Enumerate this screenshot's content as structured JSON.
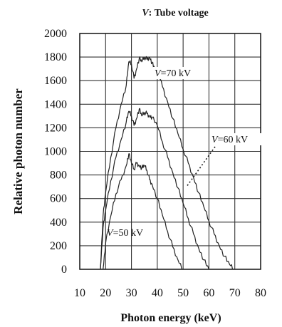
{
  "chart_data": {
    "type": "line",
    "title_var": "V",
    "title_rest": ": Tube voltage",
    "xlabel": "Photon energy (keV)",
    "ylabel": "Relative photon number",
    "xlim": [
      10,
      80
    ],
    "ylim": [
      0,
      2000
    ],
    "xticks": [
      "10",
      "20",
      "30",
      "40",
      "50",
      "60",
      "70",
      "80"
    ],
    "yticks": [
      "0",
      "200",
      "400",
      "600",
      "800",
      "1000",
      "1200",
      "1400",
      "1600",
      "1800",
      "2000"
    ],
    "grid": true,
    "series": [
      {
        "name": "V=70 kV",
        "label_var": "V",
        "label_rest": "=70 kV",
        "x": [
          18,
          19,
          20,
          22,
          24,
          26,
          28,
          29,
          30,
          31,
          32,
          33,
          34,
          35,
          36,
          37,
          38,
          39,
          40,
          42,
          44,
          46,
          48,
          50,
          52,
          54,
          56,
          58,
          60,
          62,
          64,
          66,
          68,
          69.5
        ],
        "y": [
          0,
          450,
          650,
          950,
          1200,
          1400,
          1560,
          1760,
          1740,
          1620,
          1700,
          1790,
          1760,
          1800,
          1780,
          1800,
          1750,
          1700,
          1680,
          1550,
          1420,
          1280,
          1150,
          1020,
          900,
          780,
          650,
          530,
          410,
          300,
          200,
          110,
          40,
          0
        ]
      },
      {
        "name": "V=60 kV",
        "label_var": "V",
        "label_rest": "=60 kV",
        "x": [
          18,
          19,
          20,
          22,
          24,
          26,
          28,
          29,
          30,
          31,
          32,
          33,
          34,
          35,
          36,
          37,
          38,
          40,
          42,
          44,
          46,
          48,
          50,
          52,
          54,
          56,
          58,
          60
        ],
        "y": [
          0,
          350,
          500,
          750,
          950,
          1100,
          1250,
          1340,
          1300,
          1220,
          1280,
          1360,
          1300,
          1330,
          1320,
          1300,
          1290,
          1220,
          1080,
          950,
          820,
          690,
          560,
          430,
          300,
          180,
          80,
          0
        ]
      },
      {
        "name": "V=50 kV",
        "label_var": "V",
        "label_rest": "=50 kV",
        "x": [
          19,
          20,
          22,
          24,
          26,
          28,
          29,
          30,
          31,
          32,
          33,
          34,
          35,
          36,
          37,
          38,
          40,
          42,
          44,
          46,
          48,
          50
        ],
        "y": [
          0,
          220,
          450,
          640,
          760,
          880,
          980,
          900,
          850,
          900,
          880,
          860,
          880,
          840,
          760,
          720,
          600,
          460,
          320,
          190,
          80,
          0
        ]
      }
    ]
  }
}
